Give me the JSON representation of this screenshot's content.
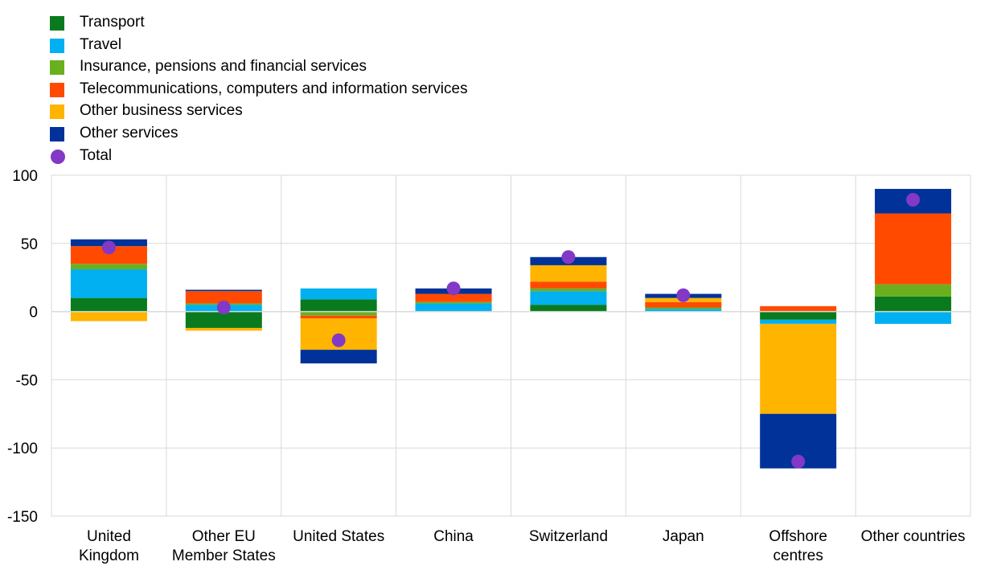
{
  "chart_data": {
    "type": "bar",
    "stacked": true,
    "categories": [
      [
        "United",
        "Kingdom"
      ],
      [
        "Other EU",
        "Member States"
      ],
      [
        "United States"
      ],
      [
        "China"
      ],
      [
        "Switzerland"
      ],
      [
        "Japan"
      ],
      [
        "Offshore",
        "centres"
      ],
      [
        "Other countries"
      ]
    ],
    "ylim": [
      -150,
      100
    ],
    "yticks": [
      100,
      50,
      0,
      -50,
      -100,
      -150
    ],
    "grid": true,
    "legend_position": "top-left",
    "series": [
      {
        "name": "Transport",
        "color": "#0a7a1e",
        "values": [
          10,
          -12,
          9,
          0,
          5,
          0,
          -6,
          11
        ]
      },
      {
        "name": "Travel",
        "color": "#00b0f0",
        "values": [
          21,
          5,
          8,
          6,
          10,
          2,
          -3,
          -9
        ]
      },
      {
        "name": "Insurance, pensions and financial services",
        "color": "#6ab01e",
        "values": [
          4,
          1,
          -3,
          1,
          2,
          1,
          0,
          9
        ]
      },
      {
        "name": "Telecommunications, computers and information services",
        "color": "#ff4a00",
        "values": [
          13,
          9,
          -2,
          6,
          5,
          4,
          4,
          52
        ]
      },
      {
        "name": "Other business services",
        "color": "#ffb400",
        "values": [
          -7,
          -2,
          -23,
          0,
          12,
          3,
          -66,
          0
        ]
      },
      {
        "name": "Other services",
        "color": "#003299",
        "values": [
          5,
          1,
          -10,
          4,
          6,
          3,
          -40,
          18
        ]
      }
    ],
    "totals": {
      "name": "Total",
      "color": "#8139c6",
      "values": [
        47,
        3,
        -21,
        17,
        40,
        12,
        -110,
        82
      ]
    }
  }
}
